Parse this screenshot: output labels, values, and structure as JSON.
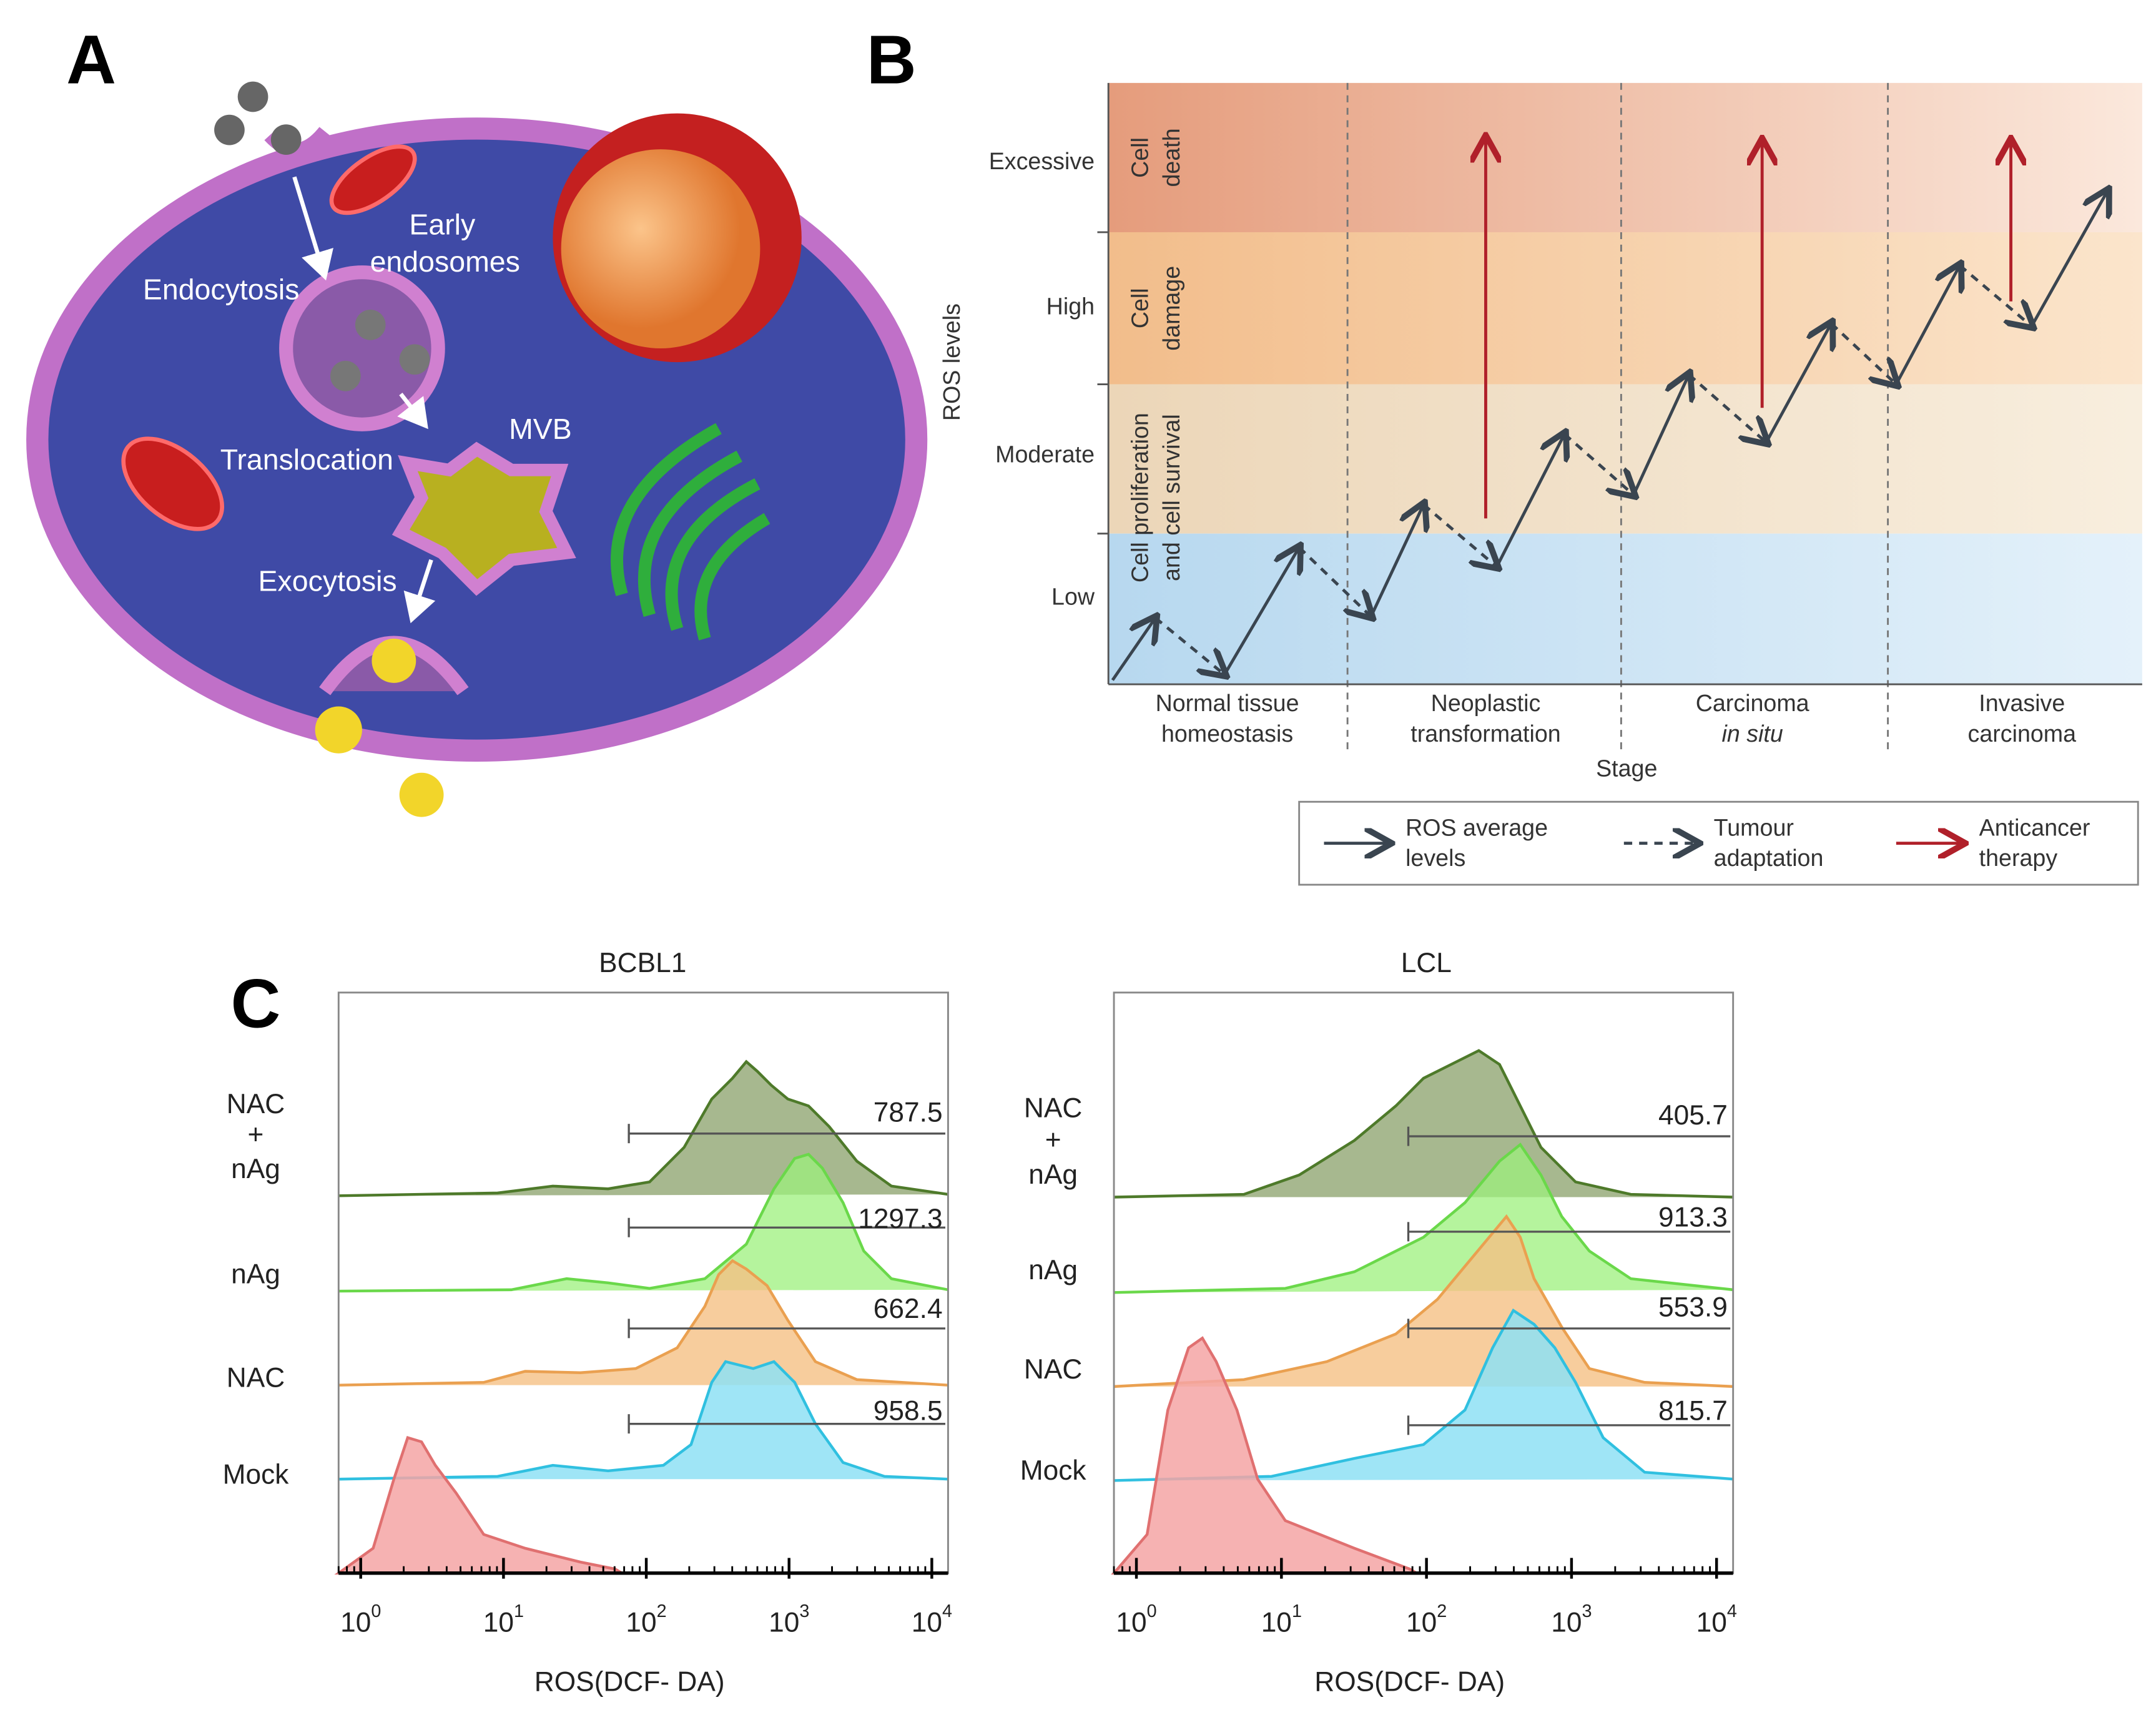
{
  "panel_a": {
    "letter": "A",
    "labels": {
      "early_endosomes": [
        "Early",
        "endosomes"
      ],
      "endocytosis": "Endocytosis",
      "translocation": "Translocation",
      "mvb": "MVB",
      "exocytosis": "Exocytosis"
    }
  },
  "panel_b": {
    "letter": "B",
    "y_axis_label": "ROS levels",
    "x_axis_label": "Stage",
    "levels": [
      "Excessive",
      "High",
      "Moderate",
      "Low"
    ],
    "zones": [
      [
        "Cell",
        "death"
      ],
      [
        "Cell",
        "damage"
      ],
      [
        "Cell proliferation",
        "and cell survival"
      ]
    ],
    "stages": [
      [
        "Normal tissue",
        "homeostasis"
      ],
      [
        "Neoplastic",
        "transformation"
      ],
      [
        "Carcinoma",
        "in situ"
      ],
      [
        "Invasive",
        "carcinoma"
      ]
    ],
    "legend": [
      [
        "ROS average",
        "levels"
      ],
      [
        "Tumour",
        "adaptation"
      ],
      [
        "Anticancer",
        "therapy"
      ]
    ]
  },
  "panel_c": {
    "letter": "C",
    "x_axis_label": "ROS(DCF- DA)",
    "log_x": true,
    "xlim": [
      0.7,
      13000
    ],
    "xticks": [
      {
        "value": 1,
        "label": "10",
        "exponent": "0"
      },
      {
        "value": 10,
        "label": "10",
        "exponent": "1"
      },
      {
        "value": 100,
        "label": "10",
        "exponent": "2"
      },
      {
        "value": 1000,
        "label": "10",
        "exponent": "3"
      },
      {
        "value": 10000,
        "label": "10",
        "exponent": "4"
      }
    ],
    "row_labels": [
      [
        "NAC",
        "+",
        "nAg"
      ],
      [
        "nAg"
      ],
      [
        "NAC"
      ],
      [
        "Mock"
      ]
    ],
    "charts": [
      {
        "title": "BCBL1",
        "values": [
          787.5,
          1297.3,
          662.4,
          958.5
        ]
      },
      {
        "title": "LCL",
        "values": [
          405.7,
          913.3,
          553.9,
          815.7
        ]
      }
    ]
  }
}
